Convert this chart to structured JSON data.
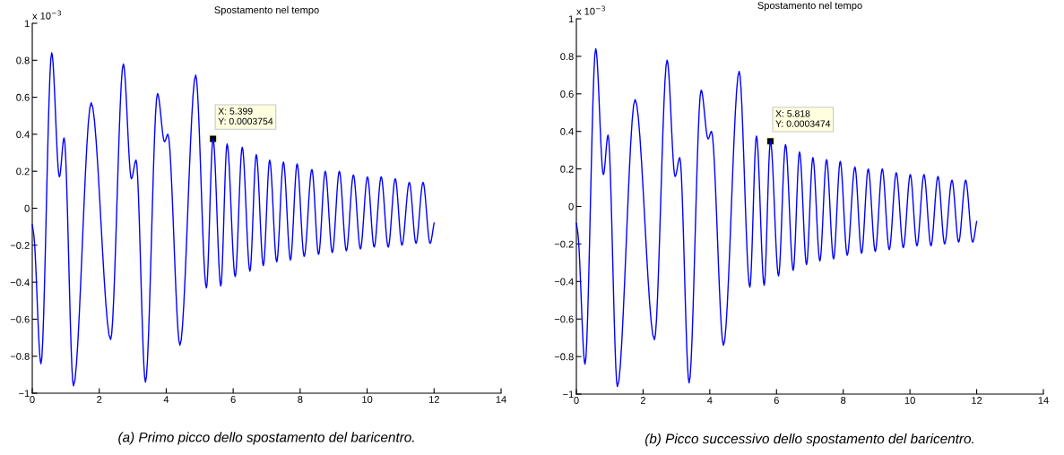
{
  "chart_data": [
    {
      "type": "line",
      "title": "Spostamento nel tempo",
      "x": [
        0,
        0.05,
        0.26,
        0.58,
        0.81,
        0.95,
        1.23,
        1.76,
        2.34,
        2.72,
        2.96,
        3.1,
        3.38,
        3.74,
        3.95,
        4.05,
        4.41,
        4.88,
        5.2,
        5.399,
        5.63,
        5.818,
        6.06,
        6.27,
        6.5,
        6.69,
        6.9,
        7.09,
        7.3,
        7.5,
        7.71,
        7.91,
        8.12,
        8.35,
        8.55,
        8.75,
        8.96,
        9.17,
        9.38,
        9.59,
        9.8,
        10.01,
        10.21,
        10.42,
        10.63,
        10.84,
        11.04,
        11.26,
        11.46,
        11.67,
        11.88,
        12.0
      ],
      "series": [
        {
          "color": "#0000ff",
          "values": [
            -0.09,
            -0.15,
            -0.84,
            0.84,
            0.17,
            0.38,
            -0.96,
            0.57,
            -0.71,
            0.78,
            0.16,
            0.26,
            -0.94,
            0.62,
            0.36,
            0.4,
            -0.74,
            0.72,
            -0.43,
            0.3754,
            -0.42,
            0.3474,
            -0.37,
            0.33,
            -0.34,
            0.29,
            -0.31,
            0.26,
            -0.29,
            0.25,
            -0.28,
            0.24,
            -0.26,
            0.21,
            -0.25,
            0.2,
            -0.24,
            0.2,
            -0.23,
            0.18,
            -0.22,
            0.17,
            -0.21,
            0.17,
            -0.21,
            0.16,
            -0.2,
            0.14,
            -0.19,
            0.14,
            -0.19,
            -0.08
          ]
        }
      ],
      "xlim": [
        0,
        14
      ],
      "ylim": [
        -1,
        1
      ],
      "xticks": [
        0,
        2,
        4,
        6,
        8,
        10,
        12,
        14
      ],
      "yticks": [
        -1,
        -0.8,
        -0.6,
        -0.4,
        -0.2,
        0,
        0.2,
        0.4,
        0.6,
        0.8,
        1
      ],
      "annotations": [
        "x 10$^{−3}$",
        "(a) Primo picco dello spostamento del baricentro.",
        {
          "text": "X: 5.399\nY: 0.0003754",
          "x": 5.399,
          "y": 0.3754
        }
      ]
    },
    {
      "type": "line",
      "title": "Spostamento nel tempo",
      "x": [
        0,
        0.05,
        0.26,
        0.58,
        0.81,
        0.95,
        1.23,
        1.76,
        2.34,
        2.72,
        2.96,
        3.1,
        3.38,
        3.74,
        3.95,
        4.05,
        4.41,
        4.88,
        5.2,
        5.399,
        5.63,
        5.818,
        6.06,
        6.27,
        6.5,
        6.69,
        6.9,
        7.09,
        7.3,
        7.5,
        7.71,
        7.91,
        8.12,
        8.35,
        8.55,
        8.75,
        8.96,
        9.17,
        9.38,
        9.59,
        9.8,
        10.01,
        10.21,
        10.42,
        10.63,
        10.84,
        11.04,
        11.26,
        11.46,
        11.67,
        11.88,
        12.0
      ],
      "series": [
        {
          "color": "#0000ff",
          "values": [
            -0.09,
            -0.15,
            -0.84,
            0.84,
            0.17,
            0.38,
            -0.96,
            0.57,
            -0.71,
            0.78,
            0.16,
            0.26,
            -0.94,
            0.62,
            0.36,
            0.4,
            -0.74,
            0.72,
            -0.43,
            0.3754,
            -0.42,
            0.3474,
            -0.37,
            0.33,
            -0.34,
            0.29,
            -0.31,
            0.26,
            -0.29,
            0.25,
            -0.28,
            0.24,
            -0.26,
            0.21,
            -0.25,
            0.2,
            -0.24,
            0.2,
            -0.23,
            0.18,
            -0.22,
            0.17,
            -0.21,
            0.17,
            -0.21,
            0.16,
            -0.2,
            0.14,
            -0.19,
            0.14,
            -0.19,
            -0.08
          ]
        }
      ],
      "xlim": [
        0,
        14
      ],
      "ylim": [
        -1,
        1
      ],
      "xticks": [
        0,
        2,
        4,
        6,
        8,
        10,
        12,
        14
      ],
      "yticks": [
        -1,
        -0.8,
        -0.6,
        -0.4,
        -0.2,
        0,
        0.2,
        0.4,
        0.6,
        0.8,
        1
      ],
      "annotations": [
        "x 10$^{−3}$",
        "(b) Picco successivo dello spostamento del baricentro.",
        {
          "text": "X: 5.818\nY: 0.0003474",
          "x": 5.818,
          "y": 0.3474
        }
      ]
    }
  ]
}
